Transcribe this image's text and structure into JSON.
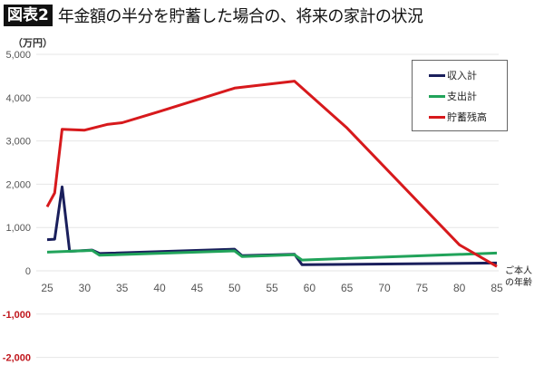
{
  "header": {
    "badge": "図表2",
    "title": "年金額の半分を貯蓄した場合の、将来の家計の状況"
  },
  "chart_data": {
    "type": "line",
    "title": "年金額の半分を貯蓄した場合の、将来の家計の状況",
    "ylabel": "（万円）",
    "xlabel": "ご本人の年齢",
    "ylim": [
      -2000,
      5000
    ],
    "xlim": [
      25,
      85
    ],
    "yticks": [
      "5,000",
      "4,000",
      "3,000",
      "2,000",
      "1,000",
      "0",
      "-1,000",
      "-2,000"
    ],
    "ytick_values": [
      5000,
      4000,
      3000,
      2000,
      1000,
      0,
      -1000,
      -2000
    ],
    "xticks": [
      "25",
      "30",
      "35",
      "40",
      "45",
      "50",
      "55",
      "60",
      "65",
      "70",
      "75",
      "80",
      "85"
    ],
    "xtick_values": [
      25,
      30,
      35,
      40,
      45,
      50,
      55,
      60,
      65,
      70,
      75,
      80,
      85
    ],
    "grid": true,
    "legend_position": "upper right",
    "series": [
      {
        "name": "収入計",
        "color": "#1a1f5c",
        "points": [
          [
            25,
            720
          ],
          [
            26,
            730
          ],
          [
            27,
            1940
          ],
          [
            28,
            450
          ],
          [
            31,
            480
          ],
          [
            32,
            400
          ],
          [
            50,
            500
          ],
          [
            51,
            350
          ],
          [
            58,
            380
          ],
          [
            59,
            140
          ],
          [
            85,
            180
          ]
        ]
      },
      {
        "name": "支出計",
        "color": "#21a35a",
        "points": [
          [
            25,
            430
          ],
          [
            31,
            470
          ],
          [
            32,
            360
          ],
          [
            50,
            460
          ],
          [
            51,
            330
          ],
          [
            58,
            370
          ],
          [
            59,
            250
          ],
          [
            85,
            410
          ]
        ]
      },
      {
        "name": "貯蓄残高",
        "color": "#d7191c",
        "points": [
          [
            25,
            1480
          ],
          [
            26,
            1800
          ],
          [
            27,
            3270
          ],
          [
            30,
            3250
          ],
          [
            33,
            3380
          ],
          [
            35,
            3420
          ],
          [
            40,
            3680
          ],
          [
            45,
            3950
          ],
          [
            50,
            4220
          ],
          [
            58,
            4380
          ],
          [
            65,
            3300
          ],
          [
            70,
            2400
          ],
          [
            75,
            1500
          ],
          [
            80,
            600
          ],
          [
            85,
            100
          ]
        ]
      }
    ]
  },
  "axis": {
    "unit_label": "（万円）",
    "x_label_line1": "ご本人",
    "x_label_line2": "の年齢"
  },
  "legend": {
    "items": [
      {
        "label": "収入計",
        "color": "#1a1f5c"
      },
      {
        "label": "支出計",
        "color": "#21a35a"
      },
      {
        "label": "貯蓄残高",
        "color": "#d7191c"
      }
    ]
  }
}
